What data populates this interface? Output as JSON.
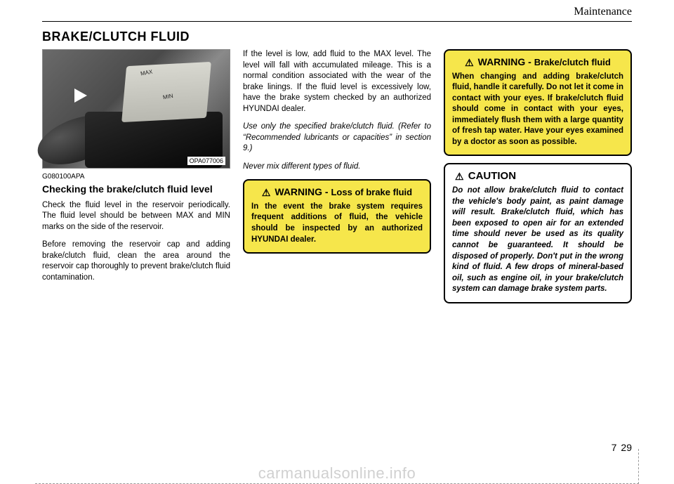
{
  "section_label": "Maintenance",
  "title": "BRAKE/CLUTCH FLUID",
  "photo": {
    "code": "OPA077006",
    "max": "MAX",
    "min": "MIN"
  },
  "img_ref": "G080100APA",
  "subhead": "Checking the brake/clutch fluid level",
  "col1_p1": "Check the fluid level in the reservoir periodically. The fluid level should be between MAX and MIN marks on the side of the reservoir.",
  "col1_p2": "Before removing the reservoir cap and adding brake/clutch fluid, clean the area around the reservoir cap thoroughly to prevent brake/clutch fluid contamination.",
  "col2_p1": "If the level is low, add fluid to the MAX level. The level will fall with accumulated mileage. This is a normal condition associated with the wear of the brake linings. If the fluid level is excessively low, have the brake system checked by an authorized HYUNDAI dealer.",
  "col2_p2": "Use only the specified brake/clutch fluid. (Refer to “Recommended lubricants or capacities” in section 9.)",
  "col2_p3": "Never mix different types of fluid.",
  "warn1": {
    "lead": "WARNING - ",
    "sub": "Loss of brake fluid",
    "body": "In the event the brake system requires frequent additions of fluid, the vehicle should be inspected by an authorized HYUNDAI dealer."
  },
  "warn2": {
    "lead": "WARNING - ",
    "sub": "Brake/clutch fluid",
    "body": "When changing and adding brake/clutch fluid, handle it carefully. Do not let it come in contact with your eyes. If brake/clutch fluid should come in contact with your eyes, immediately flush them with a large quantity of fresh tap water. Have your eyes examined by a doctor as soon as possible."
  },
  "caution": {
    "lead": "CAUTION",
    "body": "Do not allow brake/clutch fluid to contact the vehicle's body paint, as paint damage will result. Brake/clutch fluid, which has been exposed to open air for an extended time should never be used as its quality cannot be guaranteed. It should be disposed of properly. Don't put in the wrong kind of fluid. A few drops of mineral-based oil, such as engine oil, in your brake/clutch system can damage brake system parts."
  },
  "page": {
    "chapter": "7",
    "num": "29"
  },
  "watermark": "carmanualsonline.info",
  "colors": {
    "warn_bg": "#f6e64b",
    "border": "#000000",
    "watermark": "rgba(120,120,120,0.35)"
  }
}
